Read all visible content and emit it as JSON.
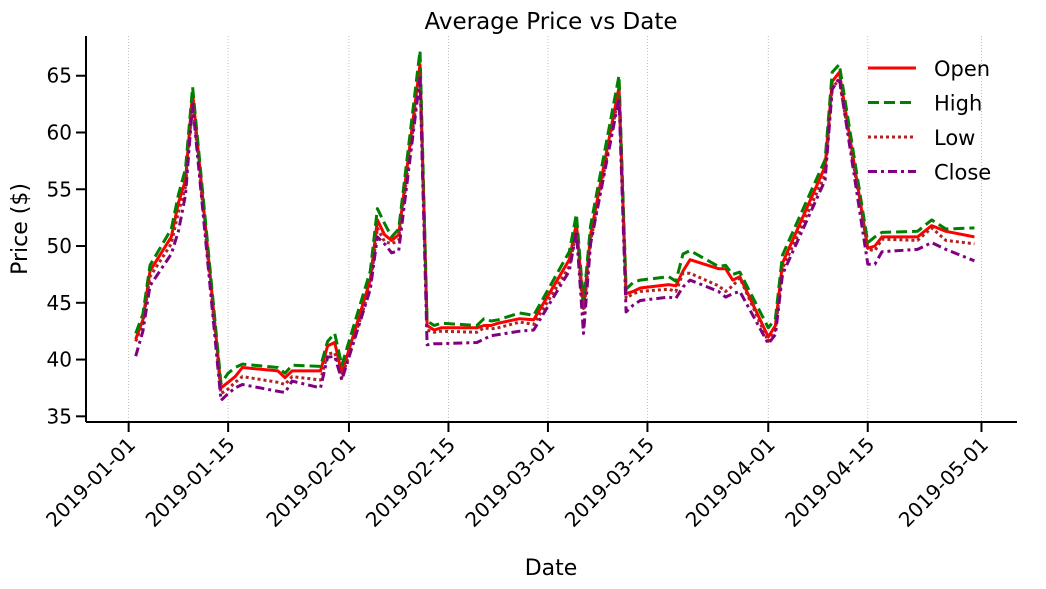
{
  "chart_data": {
    "type": "line",
    "title": "Average Price vs Date",
    "xlabel": "Date",
    "ylabel": "Price ($)",
    "xlim": [
      "2018-12-26",
      "2019-05-06"
    ],
    "ylim": [
      34.5,
      68.5
    ],
    "x_ticks": [
      "2019-01-01",
      "2019-01-15",
      "2019-02-01",
      "2019-02-15",
      "2019-03-01",
      "2019-03-15",
      "2019-04-01",
      "2019-04-15",
      "2019-05-01"
    ],
    "y_ticks": [
      35,
      40,
      45,
      50,
      55,
      60,
      65
    ],
    "grid": "vertical dotted",
    "legend_position": "top-right",
    "series": [
      {
        "name": "Open",
        "color": "#ff0000",
        "style": "solid",
        "points": [
          [
            "2019-01-02",
            41.8
          ],
          [
            "2019-01-03",
            43.5
          ],
          [
            "2019-01-04",
            47.8
          ],
          [
            "2019-01-07",
            50.8
          ],
          [
            "2019-01-08",
            53.8
          ],
          [
            "2019-01-09",
            55.8
          ],
          [
            "2019-01-10",
            63.5
          ],
          [
            "2019-01-14",
            37.5
          ],
          [
            "2019-01-15",
            38.0
          ],
          [
            "2019-01-16",
            38.5
          ],
          [
            "2019-01-17",
            39.3
          ],
          [
            "2019-01-22",
            39.0
          ],
          [
            "2019-01-23",
            38.4
          ],
          [
            "2019-01-24",
            39.0
          ],
          [
            "2019-01-28",
            39.0
          ],
          [
            "2019-01-29",
            41.2
          ],
          [
            "2019-01-30",
            41.5
          ],
          [
            "2019-01-31",
            38.8
          ],
          [
            "2019-02-04",
            47.0
          ],
          [
            "2019-02-05",
            52.3
          ],
          [
            "2019-02-06",
            51.0
          ],
          [
            "2019-02-07",
            50.5
          ],
          [
            "2019-02-08",
            51.0
          ],
          [
            "2019-02-11",
            66.0
          ],
          [
            "2019-02-12",
            43.0
          ],
          [
            "2019-02-13",
            42.6
          ],
          [
            "2019-02-14",
            42.8
          ],
          [
            "2019-02-19",
            42.8
          ],
          [
            "2019-02-20",
            43.0
          ],
          [
            "2019-02-21",
            43.0
          ],
          [
            "2019-02-22",
            43.2
          ],
          [
            "2019-02-25",
            43.6
          ],
          [
            "2019-02-27",
            43.5
          ],
          [
            "2019-03-04",
            48.8
          ],
          [
            "2019-03-05",
            52.0
          ],
          [
            "2019-03-06",
            44.5
          ],
          [
            "2019-03-07",
            51.0
          ],
          [
            "2019-03-11",
            64.0
          ],
          [
            "2019-03-12",
            45.8
          ],
          [
            "2019-03-13",
            46.0
          ],
          [
            "2019-03-14",
            46.3
          ],
          [
            "2019-03-18",
            46.6
          ],
          [
            "2019-03-19",
            46.5
          ],
          [
            "2019-03-20",
            47.8
          ],
          [
            "2019-03-21",
            48.8
          ],
          [
            "2019-03-25",
            48.0
          ],
          [
            "2019-03-26",
            48.0
          ],
          [
            "2019-03-27",
            47.0
          ],
          [
            "2019-03-28",
            47.3
          ],
          [
            "2019-04-01",
            42.0
          ],
          [
            "2019-04-02",
            43.0
          ],
          [
            "2019-04-03",
            48.5
          ],
          [
            "2019-04-09",
            57.0
          ],
          [
            "2019-04-10",
            64.5
          ],
          [
            "2019-04-11",
            65.3
          ],
          [
            "2019-04-15",
            49.8
          ],
          [
            "2019-04-16",
            50.0
          ],
          [
            "2019-04-17",
            50.8
          ],
          [
            "2019-04-22",
            50.8
          ],
          [
            "2019-04-24",
            51.8
          ],
          [
            "2019-04-26",
            51.3
          ],
          [
            "2019-04-30",
            50.8
          ]
        ]
      },
      {
        "name": "High",
        "color": "#008000",
        "style": "dashed",
        "points": [
          [
            "2019-01-02",
            42.3
          ],
          [
            "2019-01-03",
            44.0
          ],
          [
            "2019-01-04",
            48.3
          ],
          [
            "2019-01-07",
            51.5
          ],
          [
            "2019-01-08",
            54.5
          ],
          [
            "2019-01-09",
            56.8
          ],
          [
            "2019-01-10",
            64.0
          ],
          [
            "2019-01-14",
            37.9
          ],
          [
            "2019-01-15",
            38.8
          ],
          [
            "2019-01-16",
            39.3
          ],
          [
            "2019-01-17",
            39.6
          ],
          [
            "2019-01-22",
            39.3
          ],
          [
            "2019-01-23",
            38.8
          ],
          [
            "2019-01-24",
            39.5
          ],
          [
            "2019-01-28",
            39.4
          ],
          [
            "2019-01-29",
            41.6
          ],
          [
            "2019-01-30",
            42.3
          ],
          [
            "2019-01-31",
            39.5
          ],
          [
            "2019-02-04",
            47.8
          ],
          [
            "2019-02-05",
            53.3
          ],
          [
            "2019-02-06",
            52.0
          ],
          [
            "2019-02-07",
            50.8
          ],
          [
            "2019-02-08",
            51.5
          ],
          [
            "2019-02-11",
            67.2
          ],
          [
            "2019-02-12",
            43.4
          ],
          [
            "2019-02-13",
            43.0
          ],
          [
            "2019-02-14",
            43.2
          ],
          [
            "2019-02-19",
            43.0
          ],
          [
            "2019-02-20",
            43.6
          ],
          [
            "2019-02-21",
            43.4
          ],
          [
            "2019-02-22",
            43.5
          ],
          [
            "2019-02-25",
            44.1
          ],
          [
            "2019-02-27",
            43.9
          ],
          [
            "2019-03-04",
            49.5
          ],
          [
            "2019-03-05",
            52.8
          ],
          [
            "2019-03-06",
            45.0
          ],
          [
            "2019-03-07",
            51.8
          ],
          [
            "2019-03-11",
            65.0
          ],
          [
            "2019-03-12",
            46.2
          ],
          [
            "2019-03-13",
            46.8
          ],
          [
            "2019-03-14",
            47.0
          ],
          [
            "2019-03-18",
            47.3
          ],
          [
            "2019-03-19",
            46.9
          ],
          [
            "2019-03-20",
            49.3
          ],
          [
            "2019-03-21",
            49.6
          ],
          [
            "2019-03-25",
            48.2
          ],
          [
            "2019-03-26",
            48.3
          ],
          [
            "2019-03-27",
            47.5
          ],
          [
            "2019-03-28",
            47.7
          ],
          [
            "2019-04-01",
            42.8
          ],
          [
            "2019-04-02",
            43.6
          ],
          [
            "2019-04-03",
            49.2
          ],
          [
            "2019-04-09",
            57.6
          ],
          [
            "2019-04-10",
            65.3
          ],
          [
            "2019-04-11",
            66.0
          ],
          [
            "2019-04-15",
            50.3
          ],
          [
            "2019-04-16",
            50.8
          ],
          [
            "2019-04-17",
            51.2
          ],
          [
            "2019-04-22",
            51.3
          ],
          [
            "2019-04-24",
            52.3
          ],
          [
            "2019-04-26",
            51.5
          ],
          [
            "2019-04-30",
            51.6
          ]
        ]
      },
      {
        "name": "Low",
        "color": "#b22222",
        "style": "dotted",
        "points": [
          [
            "2019-01-02",
            41.6
          ],
          [
            "2019-01-03",
            43.2
          ],
          [
            "2019-01-04",
            47.3
          ],
          [
            "2019-01-07",
            50.2
          ],
          [
            "2019-01-08",
            53.0
          ],
          [
            "2019-01-09",
            55.2
          ],
          [
            "2019-01-10",
            62.8
          ],
          [
            "2019-01-14",
            37.0
          ],
          [
            "2019-01-15",
            37.4
          ],
          [
            "2019-01-16",
            38.0
          ],
          [
            "2019-01-17",
            38.5
          ],
          [
            "2019-01-22",
            38.0
          ],
          [
            "2019-01-23",
            37.8
          ],
          [
            "2019-01-24",
            38.5
          ],
          [
            "2019-01-28",
            38.2
          ],
          [
            "2019-01-29",
            40.5
          ],
          [
            "2019-01-30",
            40.6
          ],
          [
            "2019-01-31",
            38.4
          ],
          [
            "2019-02-04",
            46.4
          ],
          [
            "2019-02-05",
            51.6
          ],
          [
            "2019-02-06",
            50.4
          ],
          [
            "2019-02-07",
            50.2
          ],
          [
            "2019-02-08",
            50.5
          ],
          [
            "2019-02-11",
            65.2
          ],
          [
            "2019-02-12",
            42.6
          ],
          [
            "2019-02-13",
            42.4
          ],
          [
            "2019-02-14",
            42.5
          ],
          [
            "2019-02-19",
            42.4
          ],
          [
            "2019-02-20",
            42.8
          ],
          [
            "2019-02-21",
            42.7
          ],
          [
            "2019-02-22",
            42.8
          ],
          [
            "2019-02-25",
            43.3
          ],
          [
            "2019-02-27",
            43.1
          ],
          [
            "2019-03-04",
            48.2
          ],
          [
            "2019-03-05",
            51.3
          ],
          [
            "2019-03-06",
            43.8
          ],
          [
            "2019-03-07",
            50.4
          ],
          [
            "2019-03-11",
            63.4
          ],
          [
            "2019-03-12",
            45.4
          ],
          [
            "2019-03-13",
            45.8
          ],
          [
            "2019-03-14",
            46.0
          ],
          [
            "2019-03-18",
            46.2
          ],
          [
            "2019-03-19",
            46.0
          ],
          [
            "2019-03-20",
            47.6
          ],
          [
            "2019-03-21",
            47.6
          ],
          [
            "2019-03-25",
            46.5
          ],
          [
            "2019-03-26",
            46.0
          ],
          [
            "2019-03-27",
            46.5
          ],
          [
            "2019-03-28",
            47.2
          ],
          [
            "2019-04-01",
            41.6
          ],
          [
            "2019-04-02",
            42.6
          ],
          [
            "2019-04-03",
            48.0
          ],
          [
            "2019-04-09",
            56.3
          ],
          [
            "2019-04-10",
            64.0
          ],
          [
            "2019-04-11",
            64.6
          ],
          [
            "2019-04-15",
            49.7
          ],
          [
            "2019-04-16",
            49.6
          ],
          [
            "2019-04-17",
            50.6
          ],
          [
            "2019-04-22",
            50.5
          ],
          [
            "2019-04-24",
            51.6
          ],
          [
            "2019-04-26",
            50.5
          ],
          [
            "2019-04-30",
            50.2
          ]
        ]
      },
      {
        "name": "Close",
        "color": "#800080",
        "style": "dashdot",
        "points": [
          [
            "2019-01-02",
            40.3
          ],
          [
            "2019-01-03",
            42.5
          ],
          [
            "2019-01-04",
            46.5
          ],
          [
            "2019-01-07",
            49.3
          ],
          [
            "2019-01-08",
            51.3
          ],
          [
            "2019-01-09",
            54.5
          ],
          [
            "2019-01-10",
            62.5
          ],
          [
            "2019-01-14",
            36.4
          ],
          [
            "2019-01-15",
            37.0
          ],
          [
            "2019-01-16",
            37.5
          ],
          [
            "2019-01-17",
            37.8
          ],
          [
            "2019-01-22",
            37.2
          ],
          [
            "2019-01-23",
            37.1
          ],
          [
            "2019-01-24",
            38.1
          ],
          [
            "2019-01-28",
            37.5
          ],
          [
            "2019-01-29",
            40.2
          ],
          [
            "2019-01-30",
            40.3
          ],
          [
            "2019-01-31",
            38.2
          ],
          [
            "2019-02-04",
            46.2
          ],
          [
            "2019-02-05",
            50.8
          ],
          [
            "2019-02-06",
            50.2
          ],
          [
            "2019-02-07",
            49.4
          ],
          [
            "2019-02-08",
            49.6
          ],
          [
            "2019-02-11",
            64.8
          ],
          [
            "2019-02-12",
            41.3
          ],
          [
            "2019-02-13",
            41.4
          ],
          [
            "2019-02-14",
            41.4
          ],
          [
            "2019-02-19",
            41.5
          ],
          [
            "2019-02-20",
            41.8
          ],
          [
            "2019-02-21",
            42.1
          ],
          [
            "2019-02-22",
            42.2
          ],
          [
            "2019-02-25",
            42.5
          ],
          [
            "2019-02-27",
            42.6
          ],
          [
            "2019-03-04",
            47.8
          ],
          [
            "2019-03-05",
            51.3
          ],
          [
            "2019-03-06",
            42.3
          ],
          [
            "2019-03-07",
            50.2
          ],
          [
            "2019-03-11",
            63.0
          ],
          [
            "2019-03-12",
            44.2
          ],
          [
            "2019-03-13",
            44.8
          ],
          [
            "2019-03-14",
            45.2
          ],
          [
            "2019-03-18",
            45.5
          ],
          [
            "2019-03-19",
            45.4
          ],
          [
            "2019-03-20",
            46.4
          ],
          [
            "2019-03-21",
            47.0
          ],
          [
            "2019-03-25",
            46.0
          ],
          [
            "2019-03-26",
            45.5
          ],
          [
            "2019-03-27",
            45.8
          ],
          [
            "2019-03-28",
            46.0
          ],
          [
            "2019-04-01",
            41.4
          ],
          [
            "2019-04-02",
            42.2
          ],
          [
            "2019-04-03",
            47.5
          ],
          [
            "2019-04-09",
            55.8
          ],
          [
            "2019-04-10",
            63.8
          ],
          [
            "2019-04-11",
            64.8
          ],
          [
            "2019-04-15",
            48.4
          ],
          [
            "2019-04-16",
            48.4
          ],
          [
            "2019-04-17",
            49.5
          ],
          [
            "2019-04-22",
            49.7
          ],
          [
            "2019-04-24",
            50.3
          ],
          [
            "2019-04-26",
            49.7
          ],
          [
            "2019-04-30",
            48.7
          ]
        ]
      }
    ]
  }
}
